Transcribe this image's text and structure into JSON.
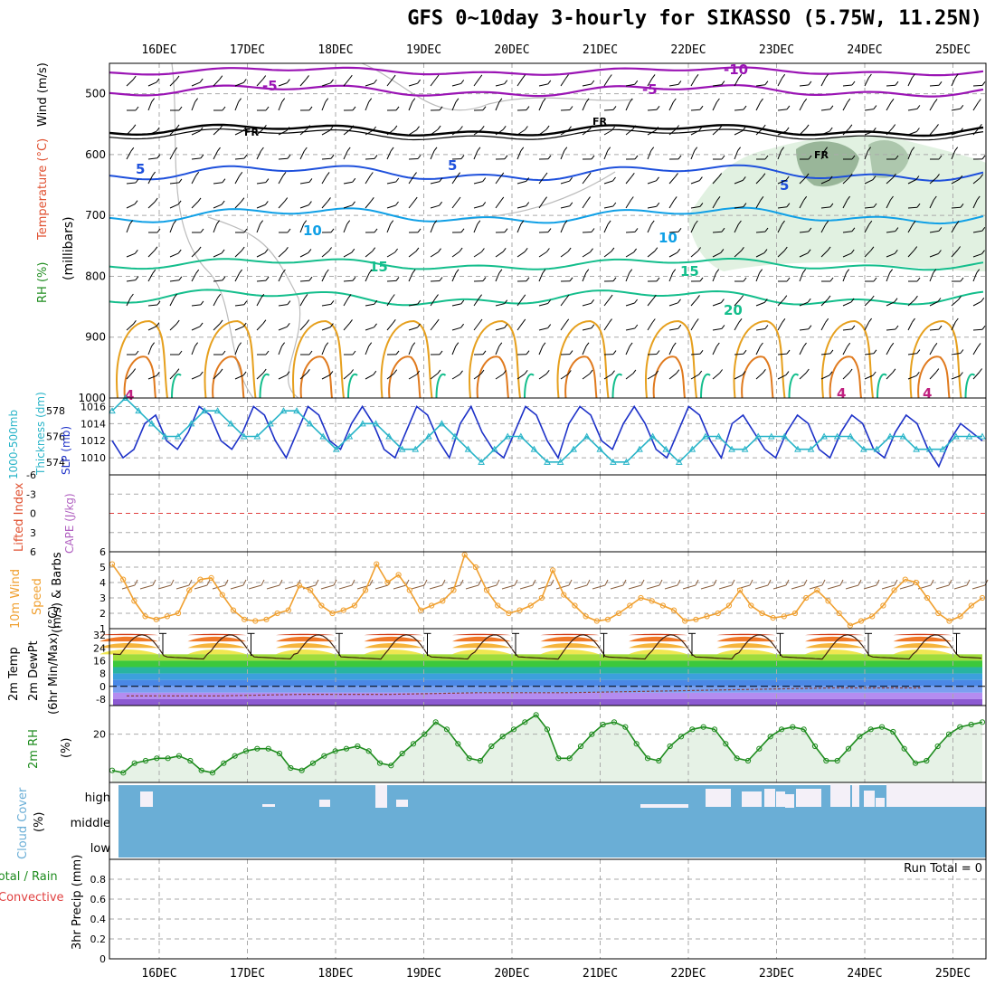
{
  "title": "GFS 0~10day 3-hourly for SIKASSO (5.75W, 11.25N)",
  "dates": [
    "16DEC",
    "17DEC",
    "18DEC",
    "19DEC",
    "20DEC",
    "21DEC",
    "22DEC",
    "23DEC",
    "24DEC",
    "25DEC"
  ],
  "labels": {
    "wind": "Wind (m/s)",
    "temp": "Temperature (°C)",
    "rh": "RH (%)",
    "mb": "(millibars)",
    "thick": "1000-500mb",
    "thick2": "Thickness (dm)",
    "slp": "SLP (mb)",
    "li": "Lifted Index",
    "cape": "CAPE (J/kg)",
    "wind10": "10m Wind",
    "wind10b": "Speed",
    "wind10c": "(m/s) & Barbs",
    "t2m": "2m Temp",
    "td2m": "2m DewPt",
    "t6hr": "(6hr Min/Max) (°C)",
    "rh2m": "2m RH",
    "rhpct": "(%)",
    "cloud": "Cloud Cover",
    "cloudpct": "(%)",
    "precip1": "Total / Rain",
    "precip2": "Convective",
    "precip3": "3hr Precip (mm)",
    "run_total": "Run Total = 0",
    "cloud_high": "high",
    "cloud_mid": "middle",
    "cloud_low": "low"
  },
  "colors": {
    "temp_purple": "#9a14b4",
    "temp_blue": "#1e50dc",
    "temp_lightblue": "#10a0e6",
    "temp_teal": "#14be8c",
    "temp_orange": "#e6a01e",
    "rh_green": "#c8e6c8",
    "slp_line": "#1e32c8",
    "thick_line": "#28b4c8",
    "wind_line": "#f0a030",
    "rh2m_line": "#1e8c1e",
    "cloud_blue": "#6aaed6"
  },
  "chart_data": [
    {
      "type": "line",
      "title": "Wind / Temperature / RH cross-section",
      "ylabel": "millibars",
      "ylim": [
        1000,
        450
      ],
      "yticks": [
        500,
        600,
        700,
        800,
        900,
        1000
      ],
      "contour_labels": [
        "-10",
        "-5",
        "-5",
        "FR",
        "FR",
        "FR",
        "5",
        "5",
        "5",
        "10",
        "10",
        "15",
        "15",
        "20",
        "4",
        "4",
        "4"
      ],
      "isotherms": [
        {
          "name": "-5",
          "level_mb": 495
        },
        {
          "name": "FR",
          "level_mb": 565
        },
        {
          "name": "5",
          "level_mb": 635
        },
        {
          "name": "10",
          "level_mb": 700
        },
        {
          "name": "15",
          "level_mb": 780
        },
        {
          "name": "20",
          "level_mb": 835
        }
      ]
    },
    {
      "type": "line",
      "title": "SLP and 1000-500mb Thickness",
      "series": [
        {
          "name": "SLP (mb)",
          "values": [
            1012,
            1010,
            1011,
            1014,
            1015,
            1012,
            1011,
            1013,
            1016,
            1015,
            1012,
            1011,
            1013,
            1016,
            1015,
            1012,
            1010,
            1013,
            1016,
            1015,
            1012,
            1011,
            1014,
            1016,
            1014,
            1011,
            1010,
            1013,
            1016,
            1015,
            1012,
            1010,
            1014,
            1016,
            1013,
            1011,
            1010,
            1013,
            1016,
            1015,
            1012,
            1010,
            1014,
            1016,
            1015,
            1012,
            1011,
            1014,
            1016,
            1014,
            1011,
            1010,
            1013,
            1016,
            1015,
            1012,
            1010,
            1014,
            1015,
            1013,
            1011,
            1010,
            1013,
            1015,
            1014,
            1011,
            1010,
            1013,
            1015,
            1014,
            1011,
            1010,
            1013,
            1015,
            1014,
            1011,
            1009,
            1012,
            1014,
            1013,
            1012
          ]
        },
        {
          "name": "Thickness (dm)",
          "values": [
            578,
            579,
            578,
            577,
            576,
            576,
            577,
            578,
            578,
            577,
            576,
            576,
            577,
            578,
            578,
            577,
            576,
            575,
            576,
            577,
            577,
            576,
            575,
            575,
            576,
            577,
            576,
            575,
            574,
            575,
            576,
            576,
            575,
            574,
            574,
            575,
            576,
            575,
            574,
            574,
            575,
            576,
            575,
            574,
            575,
            576,
            576,
            575,
            575,
            576,
            576,
            576,
            575,
            575,
            576,
            576,
            576,
            575,
            575,
            576,
            576,
            575,
            575,
            575,
            576,
            576,
            576
          ]
        }
      ],
      "ylim_left": [
        573,
        579
      ],
      "yticks_left": [
        574,
        576,
        578
      ],
      "ylim_right": [
        1008,
        1017
      ],
      "yticks_right": [
        1010,
        1012,
        1014,
        1016
      ]
    },
    {
      "type": "line",
      "title": "Lifted Index / CAPE",
      "yticks": [
        -6,
        -3,
        0,
        3,
        6
      ],
      "ylim": [
        6,
        -6
      ],
      "values": []
    },
    {
      "type": "line",
      "title": "10m Wind Speed",
      "ylim": [
        1,
        6
      ],
      "yticks": [
        1,
        2,
        3,
        4,
        5,
        6
      ],
      "values": [
        5.2,
        4.2,
        2.8,
        1.8,
        1.6,
        1.8,
        2.0,
        3.5,
        4.2,
        4.3,
        3.2,
        2.2,
        1.6,
        1.5,
        1.6,
        2.0,
        2.2,
        3.8,
        3.5,
        2.5,
        2.0,
        2.2,
        2.5,
        3.5,
        5.2,
        4.0,
        4.5,
        3.5,
        2.2,
        2.5,
        2.8,
        3.5,
        5.8,
        5.0,
        3.5,
        2.5,
        2.0,
        2.2,
        2.5,
        3.0,
        4.8,
        3.2,
        2.5,
        1.8,
        1.5,
        1.6,
        2.0,
        2.5,
        3.0,
        2.8,
        2.5,
        2.2,
        1.5,
        1.6,
        1.8,
        2.0,
        2.5,
        3.5,
        2.5,
        2.0,
        1.7,
        1.8,
        2.0,
        3.0,
        3.5,
        2.8,
        2.0,
        1.2,
        1.5,
        1.8,
        2.5,
        3.5,
        4.2,
        4.0,
        3.0,
        2.0,
        1.5,
        1.8,
        2.5,
        3.0
      ]
    },
    {
      "type": "area",
      "title": "2m Temp / DewPt",
      "ylim": [
        -12,
        36
      ],
      "yticks": [
        -8,
        0,
        8,
        16,
        24,
        32
      ],
      "temp_max": [
        33,
        33,
        33,
        33,
        33,
        33,
        33,
        33,
        33,
        33
      ],
      "temp_min": [
        20,
        19,
        19,
        19,
        19,
        18,
        19,
        19,
        19,
        20
      ],
      "dewpoint": [
        -6,
        -6,
        -5,
        -5,
        -4,
        -4,
        -3,
        -2,
        -1,
        -1
      ]
    },
    {
      "type": "area",
      "title": "2m RH",
      "ylabel": "(%)",
      "yticks": [
        20
      ],
      "ylim": [
        0,
        30
      ],
      "values": [
        5,
        4,
        8,
        9,
        10,
        10,
        11,
        9,
        5,
        4,
        8,
        11,
        13,
        14,
        14,
        12,
        6,
        5,
        8,
        11,
        13,
        14,
        15,
        13,
        8,
        7,
        12,
        16,
        20,
        25,
        22,
        16,
        10,
        9,
        15,
        19,
        22,
        25,
        28,
        22,
        10,
        10,
        15,
        20,
        24,
        25,
        23,
        16,
        10,
        9,
        15,
        19,
        22,
        23,
        22,
        16,
        10,
        9,
        14,
        19,
        22,
        23,
        22,
        15,
        9,
        9,
        14,
        19,
        22,
        23,
        21,
        14,
        8,
        9,
        15,
        20,
        23,
        24,
        25
      ]
    },
    {
      "type": "bar",
      "title": "Cloud Cover",
      "categories": [
        "high",
        "middle",
        "low"
      ],
      "values": [
        100,
        100,
        100
      ]
    },
    {
      "type": "bar",
      "title": "3hr Precip",
      "ylabel": "3hr Precip (mm)",
      "ylim": [
        0,
        1
      ],
      "yticks": [
        0,
        0.2,
        0.4,
        0.6,
        0.8
      ],
      "values": []
    }
  ]
}
